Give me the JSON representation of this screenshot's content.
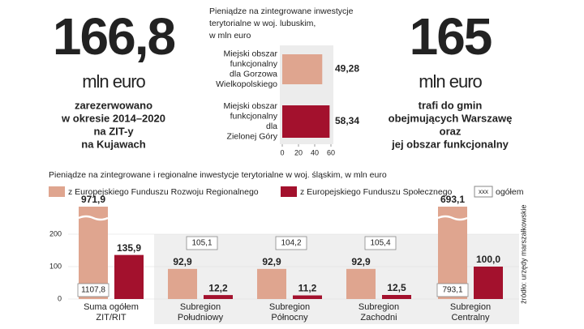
{
  "highlights": [
    {
      "value": "166,8",
      "unit": "mln euro",
      "description": [
        "zarezerwowano",
        "w okresie 2014–2020",
        "na ZIT-y",
        "na Kujawach"
      ]
    },
    {
      "value": "165",
      "unit": "mln euro",
      "description": [
        "trafi do gmin",
        "obejmujących Warszawę",
        "oraz",
        "jej obszar funkcjonalny"
      ]
    }
  ],
  "chart_data": [
    {
      "type": "hbar",
      "title": [
        "Pieniądze na zintegrowane inwestycje",
        "terytorialne w woj. lubuskim,",
        "w mln euro"
      ],
      "categories": [
        [
          "Miejski obszar",
          "funkcjonalny",
          "dla Gorzowa",
          "Wielkopolskiego"
        ],
        [
          "Miejski obszar",
          "funkcjonalny",
          "dla",
          "Zielonej Góry"
        ]
      ],
      "values": [
        49.28,
        58.34
      ],
      "value_labels": [
        "49,28",
        "58,34"
      ],
      "colors": [
        "#dfa58f",
        "#a3112d"
      ],
      "xlim": [
        0,
        60
      ],
      "xticks": [
        0,
        20,
        40,
        60
      ]
    },
    {
      "type": "bar",
      "title": "Pieniądze na zintegrowane i regionalne inwestycje terytorialne w woj. śląskim, w mln euro",
      "categories": [
        [
          "Suma ogółem",
          "ZIT/RIT"
        ],
        [
          "Subregion",
          "Południowy"
        ],
        [
          "Subregion",
          "Północny"
        ],
        [
          "Subregion",
          "Zachodni"
        ],
        [
          "Subregion",
          "Centralny"
        ]
      ],
      "series": [
        {
          "name": "z Europejskiego Funduszu Rozwoju Regionalnego",
          "color": "#dfa58f",
          "values": [
            971.9,
            92.9,
            92.9,
            92.9,
            693.1
          ],
          "value_labels": [
            "971,9",
            "92,9",
            "92,9",
            "92,9",
            "693,1"
          ]
        },
        {
          "name": "z Europejskiego Funduszu Społecznego",
          "color": "#a3112d",
          "values": [
            135.9,
            12.2,
            11.2,
            12.5,
            100.0
          ],
          "value_labels": [
            "135,9",
            "12,2",
            "11,2",
            "12,5",
            "100,0"
          ]
        }
      ],
      "totals": {
        "name": "ogółem",
        "sample": "xxx",
        "values": [
          1107.8,
          105.1,
          104.2,
          105.4,
          793.1
        ],
        "value_labels": [
          "1107,8",
          "105,1",
          "104,2",
          "105,4",
          "793,1"
        ]
      },
      "ylim": [
        0,
        285
      ],
      "yticks": [
        0,
        100,
        200
      ],
      "grid": true
    }
  ],
  "source": "źródło: urzędy marszałkowskie"
}
